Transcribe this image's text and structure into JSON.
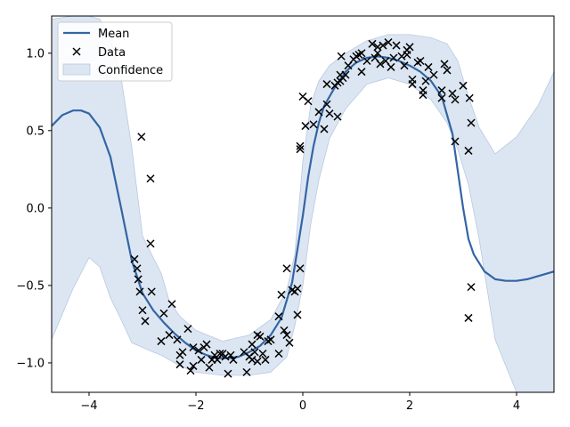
{
  "chart_data": {
    "type": "line",
    "title": "",
    "xlabel": "",
    "ylabel": "",
    "xlim": [
      -4.7,
      4.7
    ],
    "ylim": [
      -1.19,
      1.24
    ],
    "xticks": [
      -4,
      -2,
      0,
      2,
      4
    ],
    "xtick_labels": [
      "−4",
      "−2",
      "0",
      "2",
      "4"
    ],
    "yticks": [
      -1.0,
      -0.5,
      0.0,
      0.5,
      1.0
    ],
    "ytick_labels": [
      "−1.0",
      "−0.5",
      "0.0",
      "0.5",
      "1.0"
    ],
    "grid": false,
    "legend_position": "upper-left",
    "colors": {
      "mean": "#3465a4",
      "band": "#dce6f2",
      "band_edge": "#b8c9e1",
      "data": "#000000"
    },
    "series": [
      {
        "name": "Mean",
        "kind": "line",
        "x": [
          -4.7,
          -4.5,
          -4.3,
          -4.15,
          -4.0,
          -3.8,
          -3.6,
          -3.4,
          -3.2,
          -3.0,
          -2.8,
          -2.6,
          -2.4,
          -2.2,
          -2.0,
          -1.8,
          -1.6,
          -1.4,
          -1.2,
          -1.0,
          -0.8,
          -0.6,
          -0.4,
          -0.2,
          0.0,
          0.1,
          0.2,
          0.3,
          0.4,
          0.6,
          0.8,
          1.0,
          1.2,
          1.4,
          1.6,
          1.8,
          2.0,
          2.2,
          2.4,
          2.6,
          2.8,
          3.0,
          3.1,
          3.2,
          3.4,
          3.6,
          3.8,
          4.0,
          4.2,
          4.4,
          4.7
        ],
        "y": [
          0.53,
          0.6,
          0.63,
          0.63,
          0.61,
          0.52,
          0.33,
          0.0,
          -0.34,
          -0.55,
          -0.66,
          -0.74,
          -0.81,
          -0.87,
          -0.92,
          -0.95,
          -0.97,
          -0.97,
          -0.96,
          -0.93,
          -0.89,
          -0.82,
          -0.71,
          -0.48,
          -0.05,
          0.2,
          0.4,
          0.55,
          0.66,
          0.78,
          0.88,
          0.94,
          0.97,
          0.98,
          0.97,
          0.95,
          0.92,
          0.88,
          0.82,
          0.72,
          0.48,
          0.0,
          -0.2,
          -0.3,
          -0.41,
          -0.46,
          -0.47,
          -0.47,
          -0.46,
          -0.44,
          -0.41
        ]
      },
      {
        "name": "Data",
        "kind": "scatter",
        "points": [
          [
            -3.15,
            -0.33
          ],
          [
            -3.1,
            -0.39
          ],
          [
            -3.08,
            -0.46
          ],
          [
            -3.05,
            -0.54
          ],
          [
            -3.02,
            0.46
          ],
          [
            -3.0,
            -0.66
          ],
          [
            -2.95,
            -0.73
          ],
          [
            -2.85,
            0.19
          ],
          [
            -2.85,
            -0.23
          ],
          [
            -2.83,
            -0.54
          ],
          [
            -2.65,
            -0.86
          ],
          [
            -2.6,
            -0.68
          ],
          [
            -2.5,
            -0.82
          ],
          [
            -2.45,
            -0.62
          ],
          [
            -2.35,
            -0.85
          ],
          [
            -2.3,
            -0.95
          ],
          [
            -2.3,
            -1.01
          ],
          [
            -2.25,
            -0.93
          ],
          [
            -2.15,
            -0.78
          ],
          [
            -2.1,
            -1.05
          ],
          [
            -2.05,
            -0.9
          ],
          [
            -2.05,
            -1.02
          ],
          [
            -1.95,
            -0.92
          ],
          [
            -1.9,
            -0.98
          ],
          [
            -1.85,
            -0.9
          ],
          [
            -1.8,
            -0.88
          ],
          [
            -1.75,
            -1.03
          ],
          [
            -1.7,
            -0.98
          ],
          [
            -1.65,
            -0.95
          ],
          [
            -1.6,
            -0.98
          ],
          [
            -1.55,
            -0.94
          ],
          [
            -1.5,
            -0.94
          ],
          [
            -1.45,
            -0.96
          ],
          [
            -1.4,
            -1.07
          ],
          [
            -1.35,
            -0.95
          ],
          [
            -1.3,
            -0.98
          ],
          [
            -1.1,
            -0.93
          ],
          [
            -1.05,
            -1.06
          ],
          [
            -1.0,
            -0.96
          ],
          [
            -0.95,
            -0.98
          ],
          [
            -0.95,
            -0.88
          ],
          [
            -0.9,
            -0.93
          ],
          [
            -0.85,
            -0.82
          ],
          [
            -0.85,
            -0.99
          ],
          [
            -0.8,
            -0.83
          ],
          [
            -0.75,
            -0.94
          ],
          [
            -0.7,
            -0.98
          ],
          [
            -0.65,
            -0.86
          ],
          [
            -0.6,
            -0.85
          ],
          [
            -0.45,
            -0.94
          ],
          [
            -0.45,
            -0.7
          ],
          [
            -0.4,
            -0.56
          ],
          [
            -0.35,
            -0.79
          ],
          [
            -0.3,
            -0.82
          ],
          [
            -0.3,
            -0.39
          ],
          [
            -0.25,
            -0.87
          ],
          [
            -0.2,
            -0.53
          ],
          [
            -0.15,
            -0.54
          ],
          [
            -0.1,
            -0.52
          ],
          [
            -0.1,
            -0.69
          ],
          [
            -0.05,
            -0.39
          ],
          [
            -0.05,
            0.38
          ],
          [
            -0.05,
            0.4
          ],
          [
            0.0,
            0.72
          ],
          [
            0.05,
            0.53
          ],
          [
            0.1,
            0.69
          ],
          [
            0.2,
            0.54
          ],
          [
            0.3,
            0.62
          ],
          [
            0.4,
            0.51
          ],
          [
            0.45,
            0.8
          ],
          [
            0.45,
            0.67
          ],
          [
            0.5,
            0.61
          ],
          [
            0.6,
            0.79
          ],
          [
            0.65,
            0.81
          ],
          [
            0.65,
            0.59
          ],
          [
            0.7,
            0.86
          ],
          [
            0.7,
            0.82
          ],
          [
            0.72,
            0.98
          ],
          [
            0.75,
            0.84
          ],
          [
            0.8,
            0.86
          ],
          [
            0.85,
            0.92
          ],
          [
            0.95,
            0.96
          ],
          [
            1.0,
            0.98
          ],
          [
            1.05,
            0.99
          ],
          [
            1.1,
            0.88
          ],
          [
            1.1,
            1.0
          ],
          [
            1.2,
            0.95
          ],
          [
            1.3,
            1.06
          ],
          [
            1.35,
            0.97
          ],
          [
            1.4,
            1.04
          ],
          [
            1.4,
            1.0
          ],
          [
            1.45,
            0.93
          ],
          [
            1.5,
            1.05
          ],
          [
            1.55,
            0.95
          ],
          [
            1.6,
            1.07
          ],
          [
            1.65,
            0.91
          ],
          [
            1.7,
            0.97
          ],
          [
            1.75,
            1.05
          ],
          [
            1.85,
            0.98
          ],
          [
            1.9,
            0.92
          ],
          [
            1.95,
            0.99
          ],
          [
            1.95,
            1.02
          ],
          [
            2.0,
            1.04
          ],
          [
            2.05,
            0.83
          ],
          [
            2.05,
            0.8
          ],
          [
            2.15,
            0.94
          ],
          [
            2.2,
            0.95
          ],
          [
            2.25,
            0.73
          ],
          [
            2.25,
            0.76
          ],
          [
            2.3,
            0.82
          ],
          [
            2.35,
            0.91
          ],
          [
            2.45,
            0.86
          ],
          [
            2.6,
            0.71
          ],
          [
            2.6,
            0.76
          ],
          [
            2.65,
            0.93
          ],
          [
            2.7,
            0.89
          ],
          [
            2.8,
            0.74
          ],
          [
            2.85,
            0.7
          ],
          [
            2.85,
            0.43
          ],
          [
            3.0,
            0.79
          ],
          [
            3.1,
            0.37
          ],
          [
            3.12,
            0.71
          ],
          [
            3.15,
            -0.51
          ],
          [
            3.15,
            0.55
          ],
          [
            3.1,
            -0.71
          ]
        ]
      },
      {
        "name": "Confidence",
        "kind": "band",
        "x": [
          -4.7,
          -4.3,
          -4.0,
          -3.8,
          -3.6,
          -3.4,
          -3.2,
          -3.0,
          -2.8,
          -2.65,
          -2.5,
          -2.3,
          -2.0,
          -1.5,
          -1.0,
          -0.6,
          -0.3,
          -0.15,
          0.0,
          0.15,
          0.3,
          0.5,
          0.8,
          1.2,
          1.6,
          2.0,
          2.4,
          2.7,
          2.9,
          3.1,
          3.3,
          3.6,
          4.0,
          4.4,
          4.7
        ],
        "upper": [
          1.22,
          1.24,
          1.24,
          1.22,
          1.1,
          0.84,
          0.39,
          -0.18,
          -0.32,
          -0.42,
          -0.6,
          -0.7,
          -0.79,
          -0.86,
          -0.82,
          -0.72,
          -0.53,
          -0.3,
          0.3,
          0.67,
          0.82,
          0.92,
          1.0,
          1.08,
          1.12,
          1.12,
          1.1,
          1.06,
          0.95,
          0.72,
          0.52,
          0.35,
          0.46,
          0.66,
          0.88
        ],
        "lower": [
          -0.85,
          -0.52,
          -0.32,
          -0.38,
          -0.58,
          -0.72,
          -0.87,
          -0.9,
          -0.93,
          -0.95,
          -0.98,
          -1.02,
          -1.06,
          -1.08,
          -1.08,
          -1.06,
          -0.96,
          -0.76,
          -0.5,
          -0.1,
          0.18,
          0.45,
          0.64,
          0.8,
          0.84,
          0.8,
          0.7,
          0.55,
          0.38,
          0.15,
          -0.2,
          -0.85,
          -1.19,
          -1.19,
          -1.19
        ]
      }
    ]
  }
}
